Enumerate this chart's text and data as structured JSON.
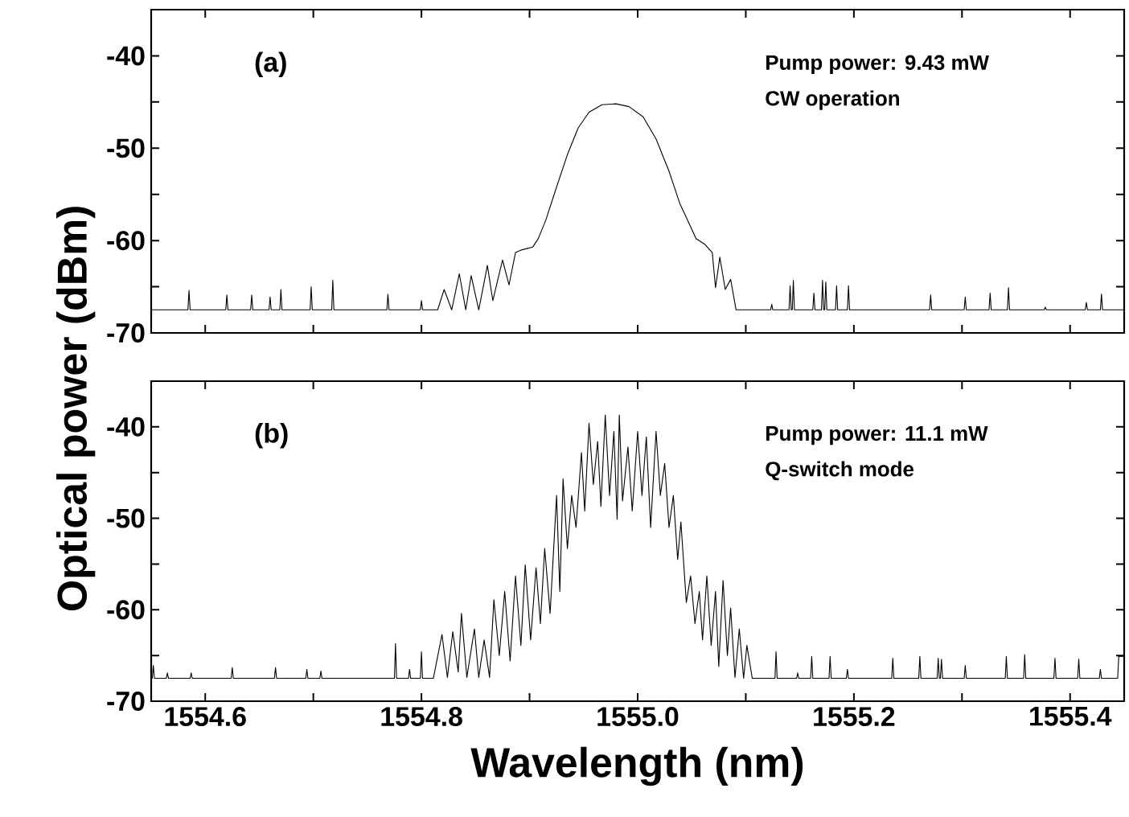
{
  "chart_data": [
    {
      "type": "line",
      "xlim": [
        1554.55,
        1555.45
      ],
      "ylim": [
        -70,
        -35
      ],
      "xticks": [
        1554.6,
        {
          "value": 1554.7,
          "label": null
        },
        1554.8,
        {
          "value": 1554.9,
          "label": null
        },
        1555.0,
        {
          "value": 1555.1,
          "label": null
        },
        1555.2,
        {
          "value": 1555.3,
          "label": null
        },
        1555.4
      ],
      "yticks": [
        -70,
        {
          "value": -65,
          "label": null
        },
        -60,
        {
          "value": -55,
          "label": null
        },
        -50,
        {
          "value": -45,
          "label": null
        },
        -40
      ],
      "tick_labels": "y",
      "marker": "none",
      "line_style": "solid",
      "annotations": [
        "(a)",
        "Pump power: 9.43 mW",
        "CW operation"
      ],
      "series": [
        {
          "color": "#000000",
          "x": [
            1554.55,
            1554.584,
            1554.585,
            1554.586,
            1554.619,
            1554.62,
            1554.621,
            1554.642,
            1554.643,
            1554.644,
            1554.659,
            1554.66,
            1554.661,
            1554.669,
            1554.67,
            1554.671,
            1554.697,
            1554.698,
            1554.699,
            1554.717,
            1554.718,
            1554.719,
            1554.768,
            1554.769,
            1554.77,
            1554.799,
            1554.8,
            1554.801,
            1554.815,
            1554.821,
            1554.828,
            1554.835,
            1554.841,
            1554.846,
            1554.853,
            1554.861,
            1554.866,
            1554.875,
            1554.881,
            1554.887,
            1554.893,
            1554.903,
            1554.908,
            1554.915,
            1554.925,
            1554.935,
            1554.945,
            1554.955,
            1554.967,
            1554.98,
            1554.992,
            1555.005,
            1555.017,
            1555.029,
            1555.039,
            1555.047,
            1555.054,
            1555.062,
            1555.069,
            1555.072,
            1555.076,
            1555.081,
            1555.086,
            1555.091,
            1555.123,
            1555.124,
            1555.125,
            1555.14,
            1555.141,
            1555.142,
            1555.143,
            1555.144,
            1555.145,
            1555.162,
            1555.163,
            1555.164,
            1555.17,
            1555.171,
            1555.172,
            1555.173,
            1555.174,
            1555.175,
            1555.183,
            1555.184,
            1555.185,
            1555.194,
            1555.195,
            1555.196,
            1555.27,
            1555.271,
            1555.272,
            1555.302,
            1555.303,
            1555.304,
            1555.325,
            1555.326,
            1555.327,
            1555.342,
            1555.343,
            1555.344,
            1555.376,
            1555.377,
            1555.378,
            1555.414,
            1555.415,
            1555.416,
            1555.428,
            1555.429,
            1555.43,
            1555.45
          ],
          "values": [
            -67.5,
            -67.5,
            -65.4,
            -67.5,
            -67.5,
            -65.9,
            -67.5,
            -67.5,
            -65.9,
            -67.5,
            -67.5,
            -66.1,
            -67.5,
            -67.5,
            -65.3,
            -67.5,
            -67.5,
            -65.0,
            -67.5,
            -67.5,
            -64.3,
            -67.5,
            -67.5,
            -65.8,
            -67.5,
            -67.5,
            -66.5,
            -67.5,
            -67.5,
            -65.3,
            -67.5,
            -63.6,
            -67.5,
            -63.8,
            -67.5,
            -62.7,
            -66.5,
            -62.1,
            -64.8,
            -61.3,
            -61.0,
            -60.7,
            -59.8,
            -57.8,
            -54.2,
            -50.7,
            -47.8,
            -46.1,
            -45.3,
            -45.2,
            -45.5,
            -46.6,
            -49.0,
            -52.5,
            -56.0,
            -58.0,
            -59.8,
            -60.4,
            -61.3,
            -65.1,
            -61.8,
            -65.3,
            -64.2,
            -67.5,
            -67.5,
            -66.9,
            -67.5,
            -67.5,
            -64.9,
            -67.5,
            -67.5,
            -64.3,
            -67.5,
            -67.5,
            -65.7,
            -67.5,
            -67.5,
            -64.3,
            -67.5,
            -67.5,
            -64.5,
            -67.5,
            -67.5,
            -64.9,
            -67.5,
            -67.5,
            -64.9,
            -67.5,
            -67.5,
            -65.9,
            -67.5,
            -67.5,
            -66.1,
            -67.5,
            -67.5,
            -65.7,
            -67.5,
            -67.5,
            -65.1,
            -67.5,
            -67.5,
            -67.2,
            -67.5,
            -67.5,
            -66.7,
            -67.5,
            -67.5,
            -65.8,
            -67.5,
            -67.5
          ]
        }
      ]
    },
    {
      "type": "line",
      "xlabel": "Wavelength (nm)",
      "ylabel": "Optical power (dBm)",
      "xlim": [
        1554.55,
        1555.45
      ],
      "ylim": [
        -70,
        -35
      ],
      "xticks": [
        1554.6,
        {
          "value": 1554.7,
          "label": null
        },
        1554.8,
        {
          "value": 1554.9,
          "label": null
        },
        {
          "value": 1555.0,
          "label": "1555.0"
        },
        {
          "value": 1555.1,
          "label": null
        },
        1555.2,
        {
          "value": 1555.3,
          "label": null
        },
        1555.4
      ],
      "yticks": [
        -70,
        {
          "value": -65,
          "label": null
        },
        -60,
        {
          "value": -55,
          "label": null
        },
        -50,
        {
          "value": -45,
          "label": null
        },
        -40
      ],
      "marker": "none",
      "line_style": "solid",
      "annotations": [
        "(b)",
        "Pump power: 11.1 mW",
        "Q-switch mode"
      ],
      "series": [
        {
          "color": "#000000",
          "x": [
            1554.55,
            1554.551,
            1554.552,
            1554.553,
            1554.564,
            1554.565,
            1554.566,
            1554.586,
            1554.587,
            1554.588,
            1554.624,
            1554.625,
            1554.626,
            1554.664,
            1554.665,
            1554.666,
            1554.693,
            1554.694,
            1554.695,
            1554.706,
            1554.707,
            1554.708,
            1554.775,
            1554.776,
            1554.777,
            1554.788,
            1554.789,
            1554.79,
            1554.799,
            1554.8,
            1554.801,
            1554.811,
            1554.819,
            1554.824,
            1554.829,
            1554.834,
            1554.837,
            1554.842,
            1554.849,
            1554.853,
            1554.858,
            1554.863,
            1554.867,
            1554.872,
            1554.877,
            1554.882,
            1554.887,
            1554.892,
            1554.896,
            1554.901,
            1554.906,
            1554.91,
            1554.914,
            1554.919,
            1554.925,
            1554.928,
            1554.931,
            1554.935,
            1554.939,
            1554.943,
            1554.948,
            1554.951,
            1554.955,
            1554.959,
            1554.963,
            1554.966,
            1554.97,
            1554.974,
            1554.978,
            1554.981,
            1554.983,
            1554.986,
            1554.991,
            1554.995,
            1555.0,
            1555.004,
            1555.008,
            1555.012,
            1555.017,
            1555.021,
            1555.025,
            1555.029,
            1555.033,
            1555.037,
            1555.04,
            1555.045,
            1555.049,
            1555.053,
            1555.057,
            1555.06,
            1555.064,
            1555.068,
            1555.072,
            1555.075,
            1555.079,
            1555.083,
            1555.086,
            1555.09,
            1555.094,
            1555.098,
            1555.101,
            1555.106,
            1555.127,
            1555.128,
            1555.129,
            1555.147,
            1555.148,
            1555.149,
            1555.16,
            1555.161,
            1555.162,
            1555.177,
            1555.178,
            1555.179,
            1555.193,
            1555.194,
            1555.195,
            1555.235,
            1555.236,
            1555.237,
            1555.26,
            1555.261,
            1555.262,
            1555.277,
            1555.278,
            1555.279,
            1555.28,
            1555.281,
            1555.282,
            1555.302,
            1555.303,
            1555.304,
            1555.34,
            1555.341,
            1555.342,
            1555.357,
            1555.358,
            1555.359,
            1555.385,
            1555.386,
            1555.387,
            1555.407,
            1555.408,
            1555.409,
            1555.427,
            1555.428,
            1555.429,
            1555.444,
            1555.445,
            1555.45
          ],
          "values": [
            -67.5,
            -67.5,
            -66.1,
            -67.5,
            -67.5,
            -66.9,
            -67.5,
            -67.5,
            -66.9,
            -67.5,
            -67.5,
            -66.3,
            -67.5,
            -67.5,
            -66.3,
            -67.5,
            -67.5,
            -66.5,
            -67.5,
            -67.5,
            -66.7,
            -67.5,
            -67.5,
            -63.7,
            -67.5,
            -67.5,
            -66.5,
            -67.5,
            -67.5,
            -64.6,
            -67.5,
            -67.5,
            -62.7,
            -67.4,
            -62.4,
            -66.8,
            -60.4,
            -67.4,
            -62.1,
            -67.4,
            -63.3,
            -67.4,
            -58.9,
            -65.0,
            -58.0,
            -65.6,
            -56.3,
            -63.9,
            -55.1,
            -63.3,
            -55.4,
            -61.5,
            -53.3,
            -60.4,
            -47.5,
            -58.0,
            -45.7,
            -53.3,
            -47.5,
            -51.0,
            -42.8,
            -49.2,
            -39.6,
            -46.3,
            -41.6,
            -48.7,
            -38.7,
            -47.5,
            -40.5,
            -50.1,
            -38.7,
            -48.1,
            -42.2,
            -49.2,
            -40.5,
            -47.5,
            -41.1,
            -51.0,
            -40.5,
            -47.5,
            -44.0,
            -51.0,
            -47.5,
            -54.5,
            -50.4,
            -59.2,
            -56.3,
            -61.5,
            -58.0,
            -63.3,
            -56.3,
            -63.9,
            -58.0,
            -66.2,
            -56.8,
            -65.0,
            -59.8,
            -67.4,
            -62.1,
            -67.5,
            -63.9,
            -67.5,
            -67.5,
            -64.6,
            -67.5,
            -67.5,
            -66.9,
            -67.5,
            -67.5,
            -65.1,
            -67.5,
            -67.5,
            -65.1,
            -67.5,
            -67.5,
            -66.5,
            -67.5,
            -67.5,
            -65.3,
            -67.5,
            -67.5,
            -65.1,
            -67.5,
            -67.5,
            -65.3,
            -67.5,
            -67.5,
            -65.4,
            -67.5,
            -67.5,
            -66.1,
            -67.5,
            -67.5,
            -65.1,
            -67.5,
            -67.5,
            -64.9,
            -67.5,
            -67.5,
            -65.3,
            -67.5,
            -67.5,
            -65.4,
            -67.5,
            -67.5,
            -66.5,
            -67.5,
            -67.5,
            -65.1,
            -65.1
          ]
        }
      ]
    }
  ]
}
